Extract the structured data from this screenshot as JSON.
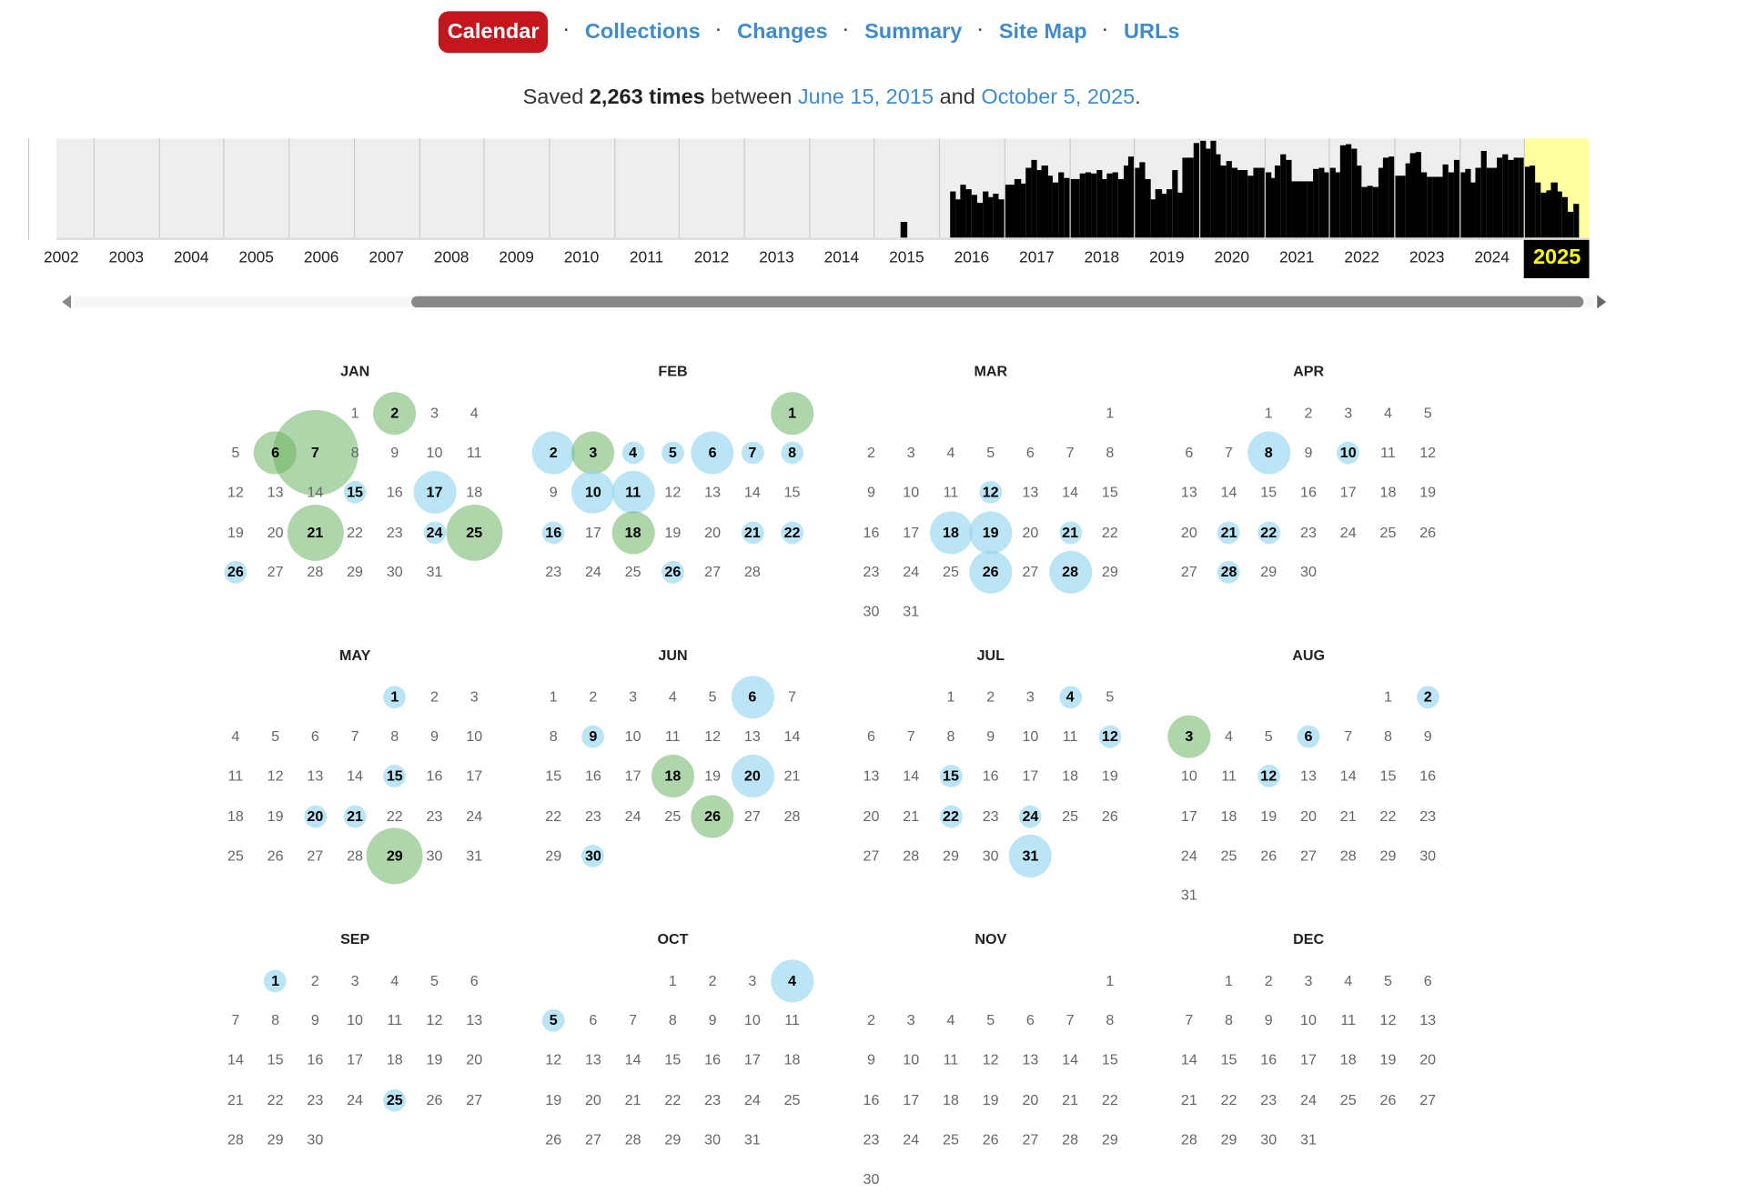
{
  "nav": {
    "items": [
      {
        "label": "Calendar",
        "active": true
      },
      {
        "label": "Collections"
      },
      {
        "label": "Changes"
      },
      {
        "label": "Summary"
      },
      {
        "label": "Site Map"
      },
      {
        "label": "URLs"
      }
    ],
    "separator": "·"
  },
  "summary": {
    "prefix": "Saved",
    "count": "2,263 times",
    "between": "between",
    "start": "June 15, 2015",
    "and": "and",
    "end": "October 5, 2025",
    "suffix": "."
  },
  "timeline": {
    "years": [
      "2002",
      "2003",
      "2004",
      "2005",
      "2006",
      "2007",
      "2008",
      "2009",
      "2010",
      "2011",
      "2012",
      "2013",
      "2014",
      "2015",
      "2016",
      "2017",
      "2018",
      "2019",
      "2020",
      "2021",
      "2022",
      "2023",
      "2024",
      "2025"
    ],
    "selected_year": "2025",
    "highlight_color": "#ffffa0",
    "monthly_relative_activity": {
      "2015": [
        0,
        0,
        0,
        0,
        0,
        16,
        0,
        0,
        0,
        0,
        0,
        0
      ],
      "2016": [
        0,
        0,
        48,
        40,
        55,
        50,
        44,
        36,
        48,
        42,
        45,
        40
      ],
      "2017": [
        55,
        55,
        60,
        56,
        72,
        80,
        70,
        74,
        64,
        57,
        67,
        62
      ],
      "2018": [
        60,
        60,
        66,
        68,
        66,
        70,
        61,
        66,
        68,
        61,
        74,
        84
      ],
      "2019": [
        72,
        78,
        60,
        39,
        50,
        45,
        50,
        70,
        46,
        82,
        82,
        98
      ],
      "2020": [
        100,
        92,
        100,
        86,
        74,
        79,
        72,
        70,
        70,
        64,
        72,
        72
      ],
      "2021": [
        68,
        62,
        75,
        86,
        80,
        58,
        58,
        58,
        58,
        71,
        72,
        68
      ],
      "2022": [
        72,
        67,
        95,
        96,
        92,
        75,
        52,
        54,
        52,
        72,
        82,
        84
      ],
      "2023": [
        64,
        64,
        77,
        87,
        88,
        67,
        63,
        63,
        63,
        76,
        68,
        80
      ],
      "2024": [
        68,
        71,
        57,
        72,
        90,
        72,
        72,
        82,
        86,
        80,
        83,
        82
      ],
      "2025": [
        73,
        74,
        57,
        47,
        49,
        57,
        48,
        42,
        27,
        35
      ]
    }
  },
  "calendar": {
    "year": 2025,
    "colors": {
      "capture": "#b5e3f5",
      "redirect": "#a9d5a3"
    },
    "months": [
      {
        "name": "JAN",
        "marked": [
          {
            "d": 2,
            "c": "g",
            "s": 2
          },
          {
            "d": 6,
            "c": "g",
            "s": 2
          },
          {
            "d": 7,
            "c": "g",
            "s": 4
          },
          {
            "d": 15,
            "c": "b",
            "s": 1
          },
          {
            "d": 17,
            "c": "b",
            "s": 2
          },
          {
            "d": 21,
            "c": "g",
            "s": 3
          },
          {
            "d": 24,
            "c": "b",
            "s": 1
          },
          {
            "d": 25,
            "c": "g",
            "s": 3
          },
          {
            "d": 26,
            "c": "b",
            "s": 1
          }
        ]
      },
      {
        "name": "FEB",
        "marked": [
          {
            "d": 1,
            "c": "g",
            "s": 2
          },
          {
            "d": 2,
            "c": "b",
            "s": 2
          },
          {
            "d": 3,
            "c": "g",
            "s": 2
          },
          {
            "d": 4,
            "c": "b",
            "s": 1
          },
          {
            "d": 5,
            "c": "b",
            "s": 1
          },
          {
            "d": 6,
            "c": "b",
            "s": 2
          },
          {
            "d": 7,
            "c": "b",
            "s": 1
          },
          {
            "d": 8,
            "c": "b",
            "s": 1
          },
          {
            "d": 10,
            "c": "b",
            "s": 2
          },
          {
            "d": 11,
            "c": "b",
            "s": 2
          },
          {
            "d": 16,
            "c": "b",
            "s": 1
          },
          {
            "d": 18,
            "c": "g",
            "s": 2
          },
          {
            "d": 21,
            "c": "b",
            "s": 1
          },
          {
            "d": 22,
            "c": "b",
            "s": 1
          },
          {
            "d": 26,
            "c": "b",
            "s": 1
          }
        ]
      },
      {
        "name": "MAR",
        "marked": [
          {
            "d": 12,
            "c": "b",
            "s": 1
          },
          {
            "d": 18,
            "c": "b",
            "s": 2
          },
          {
            "d": 19,
            "c": "b",
            "s": 2
          },
          {
            "d": 21,
            "c": "b",
            "s": 1
          },
          {
            "d": 26,
            "c": "b",
            "s": 2
          },
          {
            "d": 28,
            "c": "b",
            "s": 2
          }
        ]
      },
      {
        "name": "APR",
        "marked": [
          {
            "d": 8,
            "c": "b",
            "s": 2
          },
          {
            "d": 10,
            "c": "b",
            "s": 1
          },
          {
            "d": 21,
            "c": "b",
            "s": 1
          },
          {
            "d": 22,
            "c": "b",
            "s": 1
          },
          {
            "d": 28,
            "c": "b",
            "s": 1
          }
        ]
      },
      {
        "name": "MAY",
        "marked": [
          {
            "d": 1,
            "c": "b",
            "s": 1
          },
          {
            "d": 15,
            "c": "b",
            "s": 1
          },
          {
            "d": 20,
            "c": "b",
            "s": 1
          },
          {
            "d": 21,
            "c": "b",
            "s": 1
          },
          {
            "d": 29,
            "c": "g",
            "s": 3
          }
        ]
      },
      {
        "name": "JUN",
        "marked": [
          {
            "d": 6,
            "c": "b",
            "s": 2
          },
          {
            "d": 9,
            "c": "b",
            "s": 1
          },
          {
            "d": 18,
            "c": "g",
            "s": 2
          },
          {
            "d": 20,
            "c": "b",
            "s": 2
          },
          {
            "d": 26,
            "c": "g",
            "s": 2
          },
          {
            "d": 30,
            "c": "b",
            "s": 1
          }
        ]
      },
      {
        "name": "JUL",
        "marked": [
          {
            "d": 4,
            "c": "b",
            "s": 1
          },
          {
            "d": 12,
            "c": "b",
            "s": 1
          },
          {
            "d": 15,
            "c": "b",
            "s": 1
          },
          {
            "d": 22,
            "c": "b",
            "s": 1
          },
          {
            "d": 24,
            "c": "b",
            "s": 1
          },
          {
            "d": 31,
            "c": "b",
            "s": 2
          }
        ]
      },
      {
        "name": "AUG",
        "marked": [
          {
            "d": 2,
            "c": "b",
            "s": 1
          },
          {
            "d": 3,
            "c": "g",
            "s": 2
          },
          {
            "d": 6,
            "c": "b",
            "s": 1
          },
          {
            "d": 12,
            "c": "b",
            "s": 1
          }
        ]
      },
      {
        "name": "SEP",
        "marked": [
          {
            "d": 1,
            "c": "b",
            "s": 1
          },
          {
            "d": 25,
            "c": "b",
            "s": 1
          }
        ]
      },
      {
        "name": "OCT",
        "marked": [
          {
            "d": 4,
            "c": "b",
            "s": 2
          },
          {
            "d": 5,
            "c": "b",
            "s": 1
          }
        ]
      },
      {
        "name": "NOV",
        "marked": []
      },
      {
        "name": "DEC",
        "marked": []
      }
    ]
  }
}
